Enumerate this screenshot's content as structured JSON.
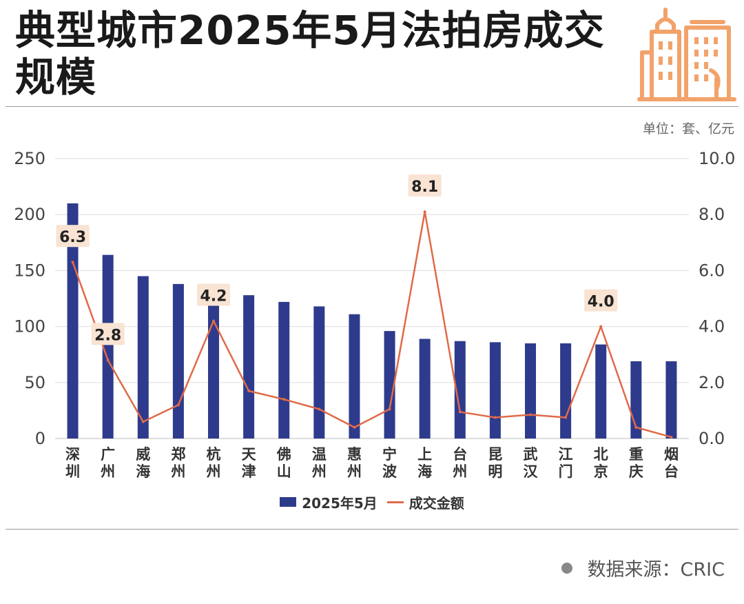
{
  "title": "典型城市2025年5月法拍房成交规模",
  "unit_note": "单位：套、亿元",
  "source_note": "数据来源：CRIC",
  "colors": {
    "bar": "#2e3b8c",
    "line": "#e06a48",
    "label_bg": "#f9e3d3",
    "grid": "#dddddd",
    "logo": "#f2a26a"
  },
  "chart_data": {
    "type": "bar",
    "categories": [
      "深圳",
      "广州",
      "威海",
      "郑州",
      "杭州",
      "天津",
      "佛山",
      "温州",
      "惠州",
      "宁波",
      "上海",
      "台州",
      "昆明",
      "武汉",
      "江门",
      "北京",
      "重庆",
      "烟台"
    ],
    "series": [
      {
        "name": "2025年5月",
        "type": "bar",
        "axis": "left",
        "values": [
          210,
          164,
          145,
          138,
          134,
          128,
          122,
          118,
          111,
          96,
          89,
          87,
          86,
          85,
          85,
          84,
          69,
          69
        ]
      },
      {
        "name": "成交金额",
        "type": "line",
        "axis": "right",
        "values": [
          6.3,
          2.8,
          0.6,
          1.2,
          4.2,
          1.7,
          1.4,
          1.05,
          0.4,
          1.05,
          8.1,
          0.95,
          0.75,
          0.85,
          0.75,
          4.0,
          0.4,
          0.05
        ]
      }
    ],
    "data_labels": [
      {
        "index": 0,
        "text": "6.3"
      },
      {
        "index": 1,
        "text": "2.8"
      },
      {
        "index": 4,
        "text": "4.2"
      },
      {
        "index": 10,
        "text": "8.1"
      },
      {
        "index": 15,
        "text": "4.0"
      }
    ],
    "y_left": {
      "ticks": [
        "0",
        "50",
        "100",
        "150",
        "200",
        "250"
      ],
      "range": [
        0,
        250
      ]
    },
    "y_right": {
      "ticks": [
        "0.0",
        "2.0",
        "4.0",
        "6.0",
        "8.0",
        "10.0"
      ],
      "range": [
        0,
        10
      ]
    },
    "grid": true,
    "legend_position": "bottom"
  }
}
